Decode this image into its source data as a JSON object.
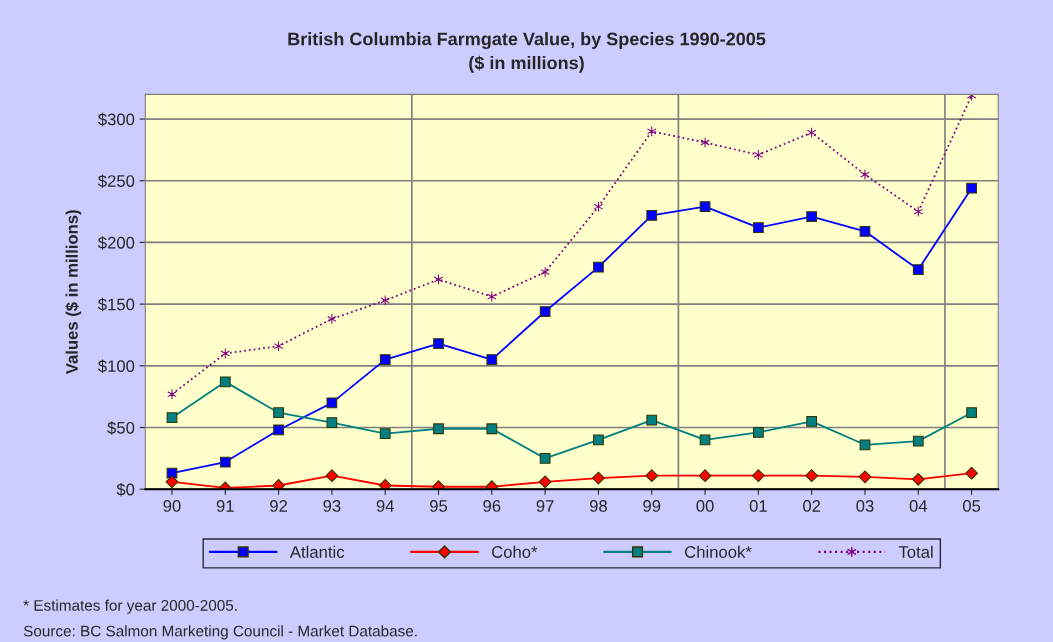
{
  "chart_data": {
    "type": "line",
    "title": "British Columbia Farmgate Value, by Species 1990-2005\n($ in millions)",
    "ylabel": "Values ($ in millions)",
    "categories": [
      "90",
      "91",
      "92",
      "93",
      "94",
      "95",
      "96",
      "97",
      "98",
      "99",
      "00",
      "01",
      "02",
      "03",
      "04",
      "05"
    ],
    "series": [
      {
        "name": "Atlantic",
        "color": "#0000ff",
        "marker": "square",
        "line_style": "solid",
        "values": [
          13,
          22,
          48,
          70,
          105,
          118,
          105,
          144,
          180,
          222,
          229,
          212,
          221,
          209,
          178,
          244
        ]
      },
      {
        "name": "Coho*",
        "color": "#ff0000",
        "marker": "diamond",
        "line_style": "solid",
        "values": [
          6,
          1,
          3,
          11,
          3,
          2,
          2,
          6,
          9,
          11,
          11,
          11,
          11,
          10,
          8,
          13
        ]
      },
      {
        "name": "Chinook*",
        "color": "#008080",
        "marker": "square",
        "line_style": "solid",
        "values": [
          58,
          87,
          62,
          54,
          45,
          49,
          49,
          25,
          40,
          56,
          40,
          46,
          55,
          36,
          39,
          62
        ]
      },
      {
        "name": "Total",
        "color": "#800080",
        "marker": "cross",
        "line_style": "dotted",
        "values": [
          77,
          110,
          116,
          138,
          153,
          170,
          156,
          176,
          229,
          290,
          281,
          271,
          289,
          255,
          225,
          319
        ]
      }
    ],
    "ylim": [
      0,
      320
    ],
    "yticks": [
      {
        "value": 0,
        "label": "$0"
      },
      {
        "value": 50,
        "label": "$50"
      },
      {
        "value": 100,
        "label": "$100"
      },
      {
        "value": 150,
        "label": "$150"
      },
      {
        "value": 200,
        "label": "$200"
      },
      {
        "value": 250,
        "label": "$250"
      },
      {
        "value": 300,
        "label": "$300"
      }
    ],
    "grid": true,
    "legend": "bottom",
    "annotations": [
      "* Estimates for year 2000-2005.",
      "Source: BC Salmon Marketing Council - Market Database."
    ]
  }
}
